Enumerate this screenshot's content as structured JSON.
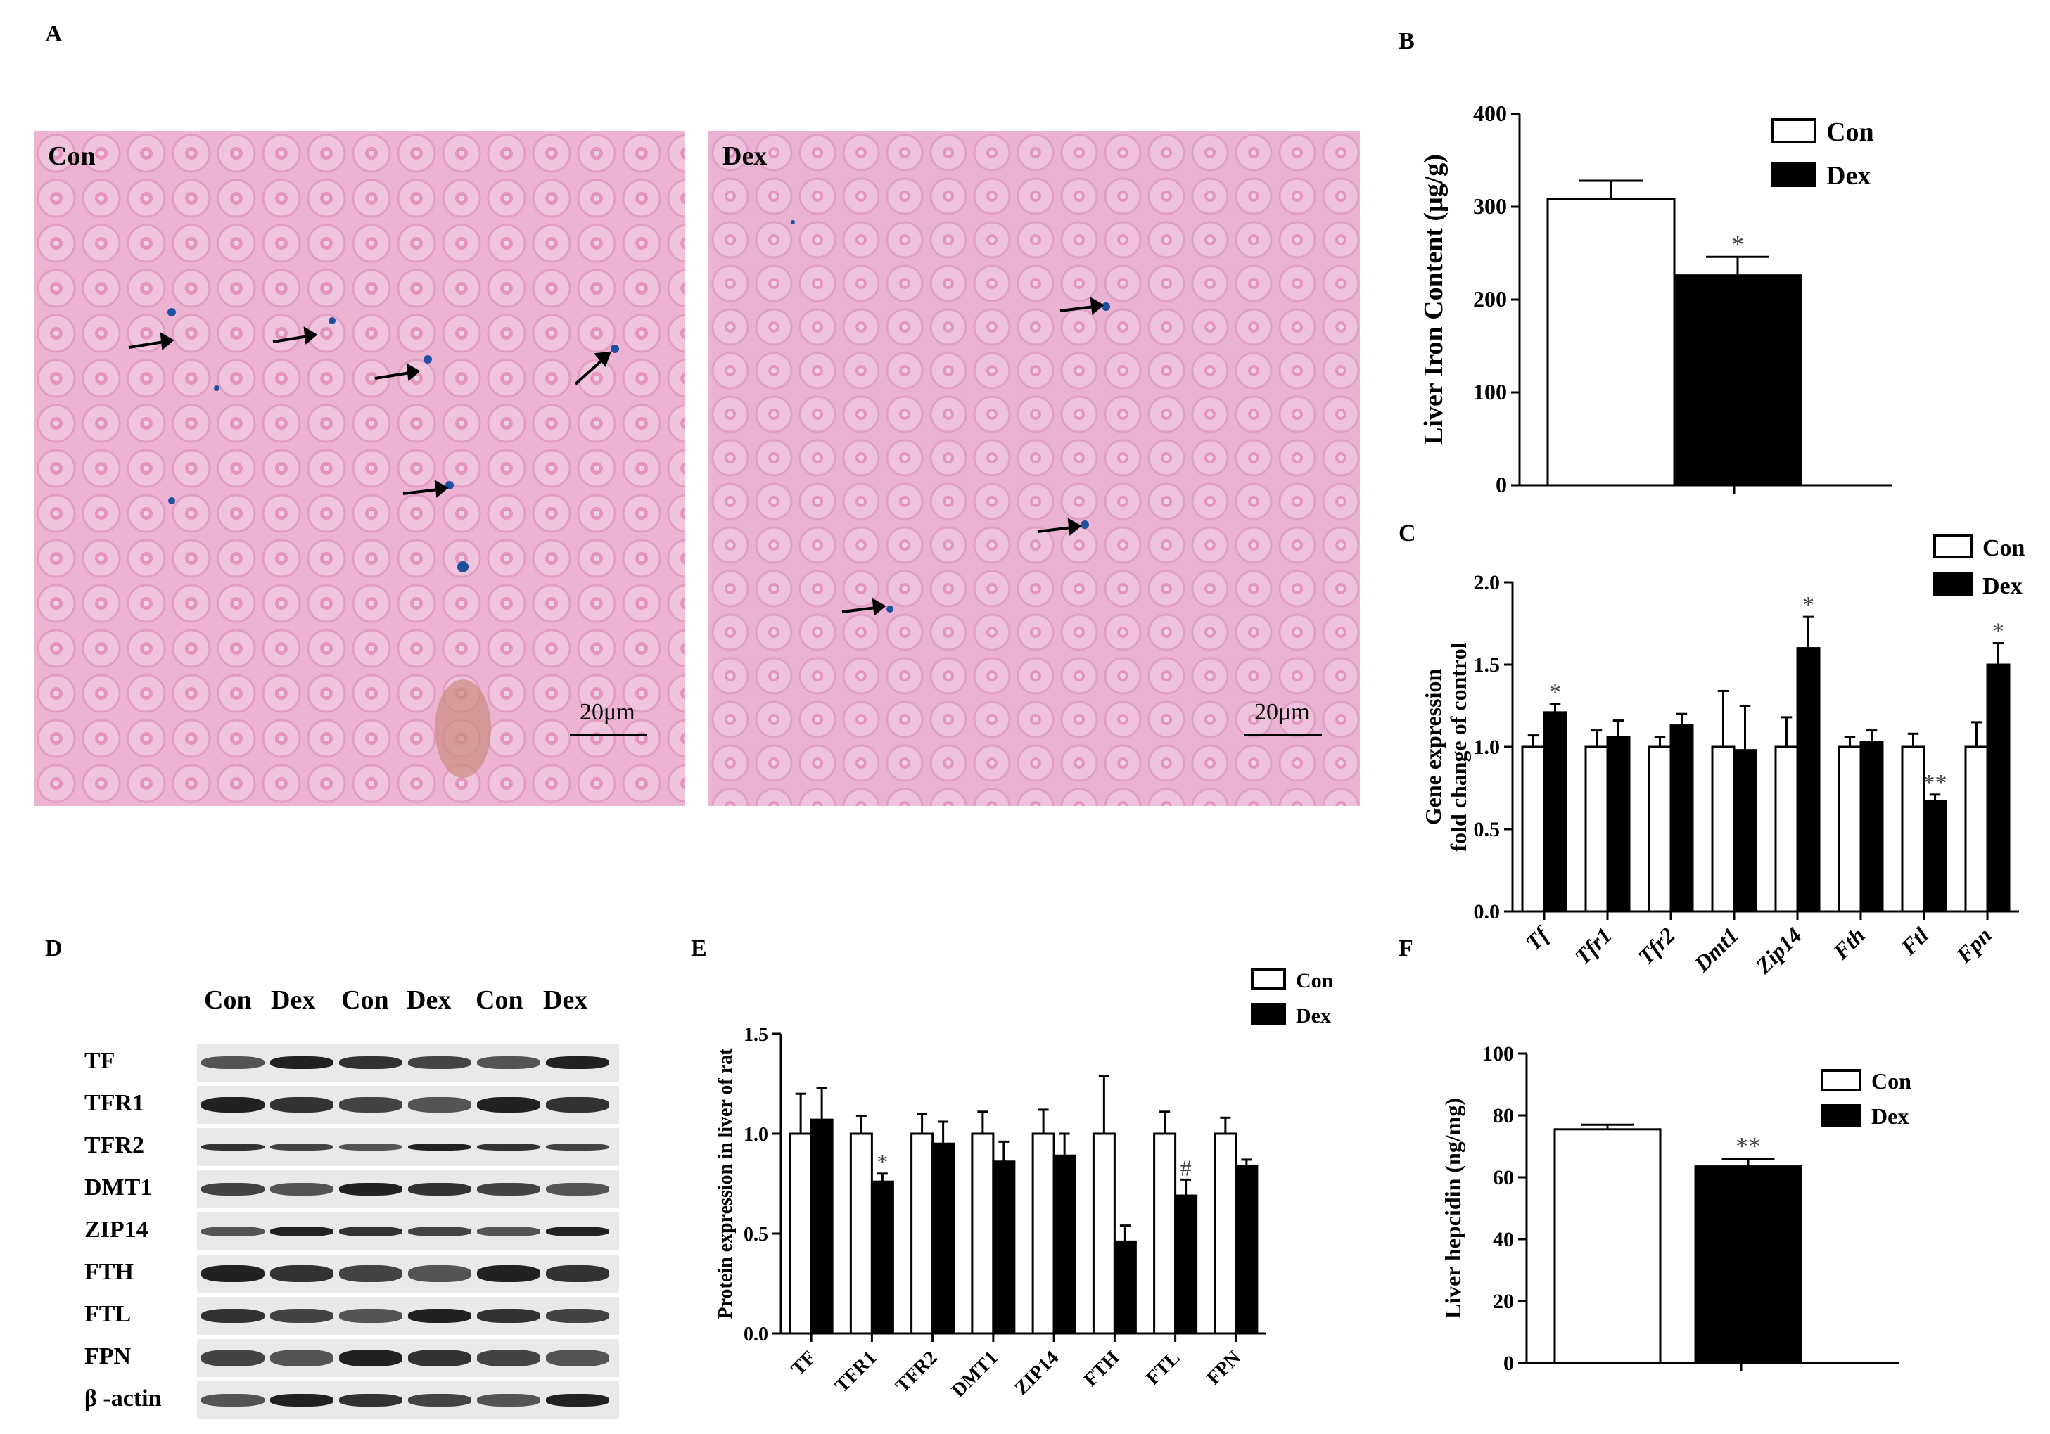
{
  "panels": {
    "A": "A",
    "B": "B",
    "C": "C",
    "D": "D",
    "E": "E",
    "F": "F"
  },
  "micrographs": [
    {
      "label": "Con",
      "scale": "20μm"
    },
    {
      "label": "Dex",
      "scale": "20μm"
    }
  ],
  "colors": {
    "con_fill": "#ffffff",
    "dex_fill": "#000000",
    "tissue_pink": "#f0a9c6",
    "iron_stain": "#1f4fa0"
  },
  "blot": {
    "lane_headers": [
      "Con",
      "Dex",
      "Con",
      "Dex",
      "Con",
      "Dex"
    ],
    "rows": [
      "TF",
      "TFR1",
      "TFR2",
      "DMT1",
      "ZIP14",
      "FTH",
      "FTL",
      "FPN",
      "β -actin"
    ]
  },
  "chart_data": [
    {
      "panel": "B",
      "type": "bar",
      "ylabel": "Liver Iron Content (μg/g)",
      "ylim": [
        0,
        400
      ],
      "yticks": [
        0,
        100,
        200,
        300,
        400
      ],
      "legend": [
        "Con",
        "Dex"
      ],
      "legend_position": "top-right",
      "series": [
        {
          "name": "Con",
          "values": [
            308
          ],
          "errors": [
            20
          ],
          "sig": [
            ""
          ]
        },
        {
          "name": "Dex",
          "values": [
            226
          ],
          "errors": [
            20
          ],
          "sig": [
            "*"
          ]
        }
      ]
    },
    {
      "panel": "C",
      "type": "bar",
      "ylabel": [
        "Gene expression",
        "fold change of control"
      ],
      "ylim": [
        0,
        2.0
      ],
      "yticks": [
        "0.0",
        "0.5",
        "1.0",
        "1.5",
        "2.0"
      ],
      "categories": [
        "Tf",
        "Tfr1",
        "Tfr2",
        "Dmt1",
        "Zip14",
        "Fth",
        "Ftl",
        "Fpn"
      ],
      "legend": [
        "Con",
        "Dex"
      ],
      "legend_position": "top-right",
      "series": [
        {
          "name": "Con",
          "values": [
            1.0,
            1.0,
            1.0,
            1.0,
            1.0,
            1.0,
            1.0,
            1.0
          ],
          "errors": [
            0.07,
            0.1,
            0.06,
            0.34,
            0.18,
            0.06,
            0.08,
            0.15
          ],
          "sig": [
            "",
            "",
            "",
            "",
            "",
            "",
            "",
            ""
          ]
        },
        {
          "name": "Dex",
          "values": [
            1.21,
            1.06,
            1.13,
            0.98,
            1.6,
            1.03,
            0.67,
            1.5
          ],
          "errors": [
            0.05,
            0.1,
            0.07,
            0.27,
            0.19,
            0.07,
            0.04,
            0.13
          ],
          "sig": [
            "*",
            "",
            "",
            "",
            "*",
            "",
            "**",
            "*"
          ]
        }
      ]
    },
    {
      "panel": "E",
      "type": "bar",
      "ylabel": "Protein expression in liver of rat",
      "ylim": [
        0,
        1.5
      ],
      "yticks": [
        "0.0",
        "0.5",
        "1.0",
        "1.5"
      ],
      "categories": [
        "TF",
        "TFR1",
        "TFR2",
        "DMT1",
        "ZIP14",
        "FTH",
        "FTL",
        "FPN"
      ],
      "legend": [
        "Con",
        "Dex"
      ],
      "legend_position": "top-right",
      "series": [
        {
          "name": "Con",
          "values": [
            1.0,
            1.0,
            1.0,
            1.0,
            1.0,
            1.0,
            1.0,
            1.0
          ],
          "errors": [
            0.2,
            0.09,
            0.1,
            0.11,
            0.12,
            0.29,
            0.11,
            0.08
          ],
          "sig": [
            "",
            "",
            "",
            "",
            "",
            "",
            "",
            ""
          ]
        },
        {
          "name": "Dex",
          "values": [
            1.07,
            0.76,
            0.95,
            0.86,
            0.89,
            0.46,
            0.69,
            0.84
          ],
          "errors": [
            0.16,
            0.04,
            0.11,
            0.1,
            0.11,
            0.08,
            0.08,
            0.03
          ],
          "sig": [
            "",
            "*",
            "",
            "",
            "",
            "",
            "#",
            ""
          ]
        }
      ]
    },
    {
      "panel": "F",
      "type": "bar",
      "ylabel": "Liver  hepcidin (ng/mg)",
      "ylim": [
        0,
        100
      ],
      "yticks": [
        0,
        20,
        40,
        60,
        80,
        100
      ],
      "legend": [
        "Con",
        "Dex"
      ],
      "legend_position": "top-right",
      "series": [
        {
          "name": "Con",
          "values": [
            75.5
          ],
          "errors": [
            1.5
          ],
          "sig": [
            ""
          ]
        },
        {
          "name": "Dex",
          "values": [
            63.5
          ],
          "errors": [
            2.5
          ],
          "sig": [
            "**"
          ]
        }
      ]
    }
  ]
}
